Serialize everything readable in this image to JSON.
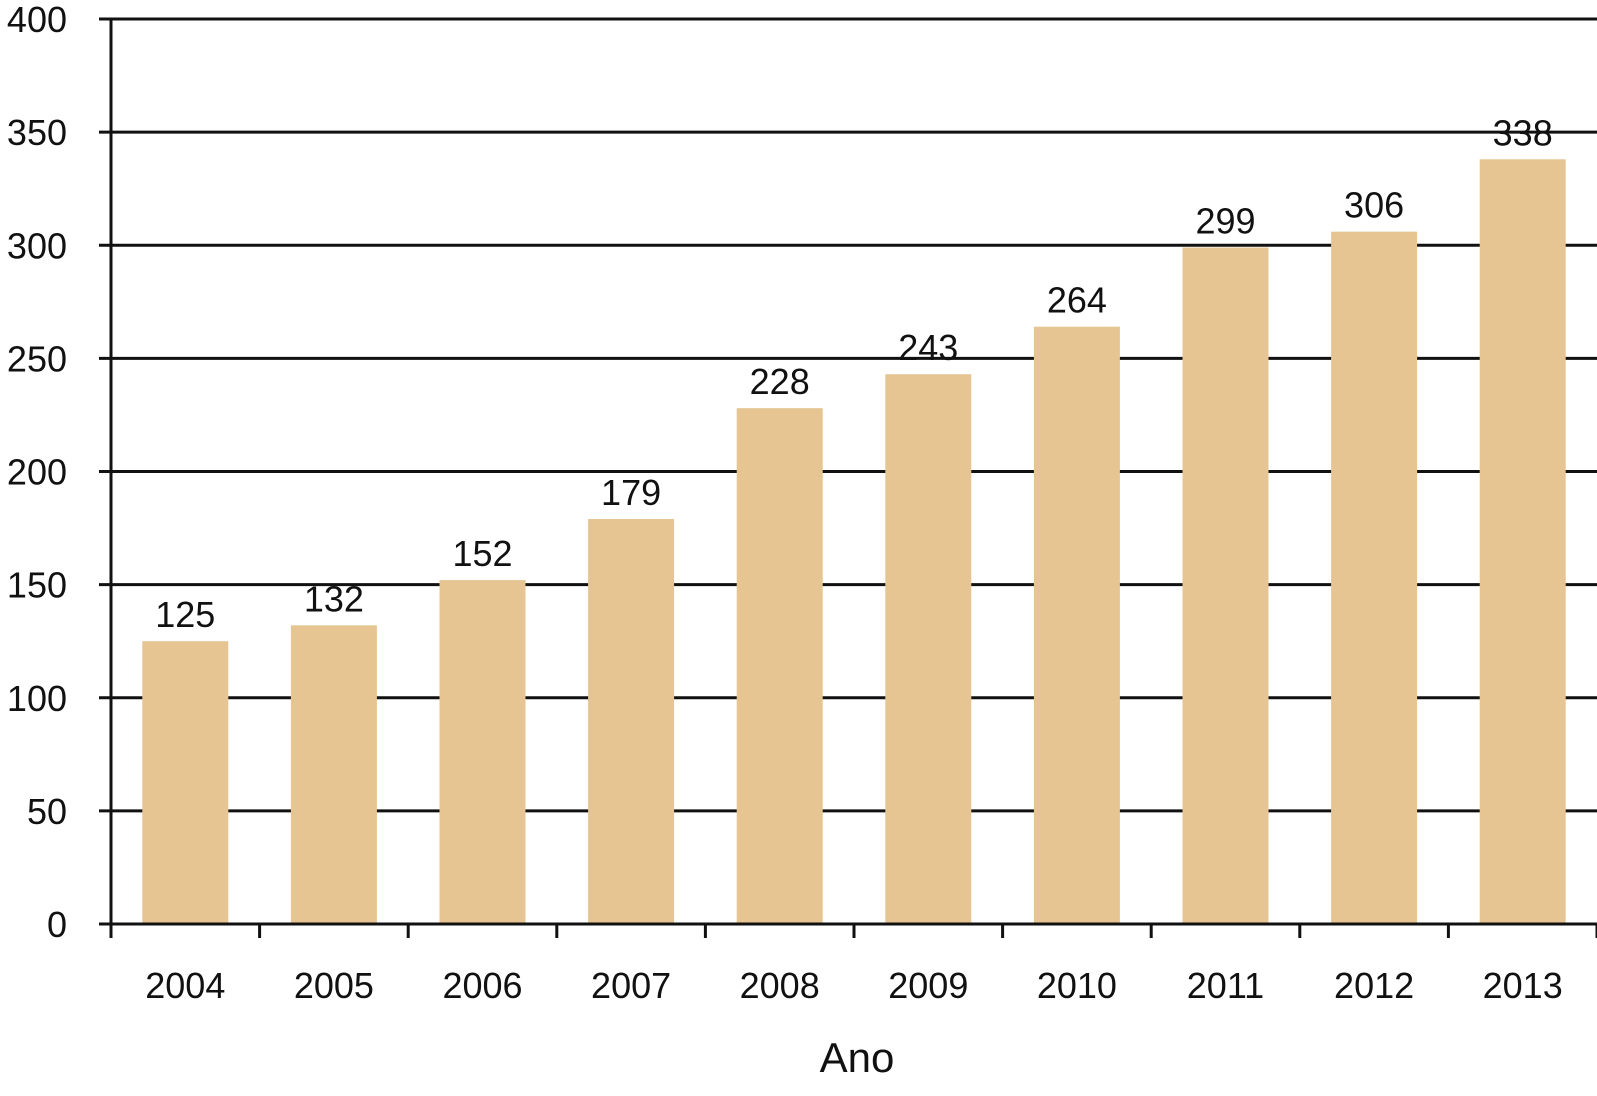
{
  "chart_data": {
    "type": "bar",
    "title": "",
    "xlabel": "Ano",
    "ylabel": "",
    "categories": [
      "2004",
      "2005",
      "2006",
      "2007",
      "2008",
      "2009",
      "2010",
      "2011",
      "2012",
      "2013"
    ],
    "values": [
      125,
      132,
      152,
      179,
      228,
      243,
      264,
      299,
      306,
      338
    ],
    "data_labels": [
      "125",
      "132",
      "152",
      "179",
      "228",
      "243",
      "264",
      "299",
      "306",
      "338"
    ],
    "ylim": [
      0,
      400
    ],
    "y_ticks": [
      0,
      50,
      100,
      150,
      200,
      250,
      300,
      350,
      400
    ],
    "y_tick_labels": [
      "0",
      "50",
      "100",
      "150",
      "200",
      "250",
      "300",
      "350",
      "400"
    ],
    "grid": true,
    "grid_axis": "y",
    "legend": "none",
    "colors": {
      "bar": "#e6c593",
      "grid": "#111111",
      "axis": "#111111",
      "text": "#111111"
    }
  }
}
